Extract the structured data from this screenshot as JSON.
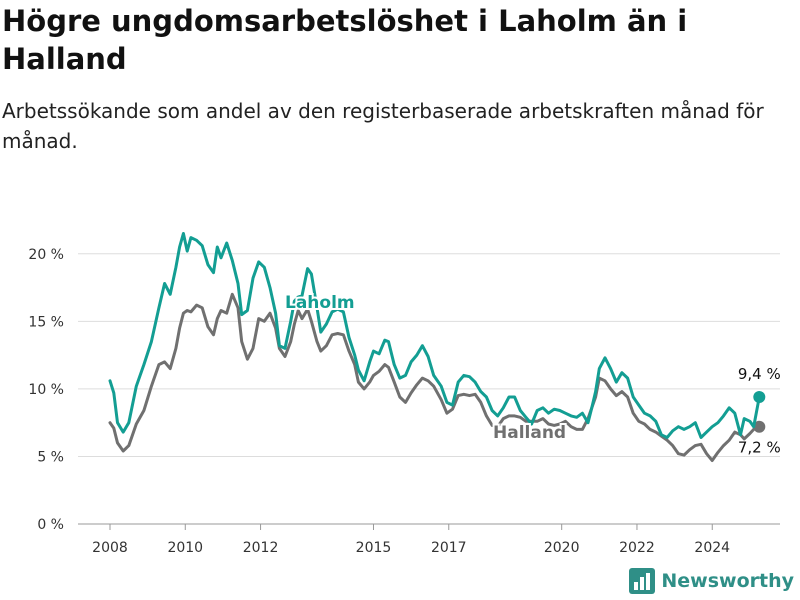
{
  "title": "Högre ungdomsarbetslöshet i Laholm än i Halland",
  "subtitle": "Arbetssökande som andel av den registerbaserade arbetskraften månad för månad.",
  "brand": "Newsworthy",
  "colors": {
    "laholm": "#139e93",
    "halland": "#707070",
    "grid": "#dddddd",
    "brand": "#2f8f87"
  },
  "chart_data": {
    "type": "line",
    "xlim": [
      2008,
      2025.8
    ],
    "ylim": [
      0,
      22.5
    ],
    "y_ticks": [
      0,
      5,
      10,
      15,
      20
    ],
    "y_tick_labels": [
      "0 %",
      "5 %",
      "10 %",
      "15 %",
      "20 %"
    ],
    "x_ticks": [
      2008,
      2010,
      2012,
      2015,
      2017,
      2020,
      2022,
      2024
    ],
    "x_tick_labels": [
      "2008",
      "2010",
      "2012",
      "2015",
      "2017",
      "2020",
      "2022",
      "2024"
    ],
    "grid": true,
    "series": [
      {
        "name": "Laholm",
        "end_label": "9,4 %",
        "points": [
          [
            2008.0,
            10.6
          ],
          [
            2008.1,
            9.7
          ],
          [
            2008.2,
            7.5
          ],
          [
            2008.35,
            6.8
          ],
          [
            2008.5,
            7.5
          ],
          [
            2008.7,
            10.2
          ],
          [
            2008.9,
            11.8
          ],
          [
            2009.1,
            13.5
          ],
          [
            2009.3,
            16.0
          ],
          [
            2009.45,
            17.8
          ],
          [
            2009.6,
            17.0
          ],
          [
            2009.75,
            19.0
          ],
          [
            2009.85,
            20.5
          ],
          [
            2009.95,
            21.5
          ],
          [
            2010.05,
            20.2
          ],
          [
            2010.15,
            21.2
          ],
          [
            2010.3,
            21.0
          ],
          [
            2010.45,
            20.6
          ],
          [
            2010.6,
            19.2
          ],
          [
            2010.75,
            18.6
          ],
          [
            2010.85,
            20.5
          ],
          [
            2010.95,
            19.7
          ],
          [
            2011.1,
            20.8
          ],
          [
            2011.25,
            19.5
          ],
          [
            2011.4,
            17.8
          ],
          [
            2011.5,
            15.5
          ],
          [
            2011.65,
            15.8
          ],
          [
            2011.8,
            18.2
          ],
          [
            2011.95,
            19.4
          ],
          [
            2012.1,
            19.0
          ],
          [
            2012.25,
            17.5
          ],
          [
            2012.4,
            15.6
          ],
          [
            2012.5,
            13.2
          ],
          [
            2012.65,
            13.0
          ],
          [
            2012.8,
            15.0
          ],
          [
            2012.9,
            16.5
          ],
          [
            2013.0,
            16.8
          ],
          [
            2013.1,
            16.9
          ],
          [
            2013.25,
            18.9
          ],
          [
            2013.35,
            18.5
          ],
          [
            2013.5,
            16.0
          ],
          [
            2013.6,
            14.2
          ],
          [
            2013.75,
            14.8
          ],
          [
            2013.9,
            15.7
          ],
          [
            2014.05,
            15.9
          ],
          [
            2014.2,
            15.7
          ],
          [
            2014.35,
            13.8
          ],
          [
            2014.5,
            12.5
          ],
          [
            2014.6,
            11.4
          ],
          [
            2014.75,
            10.6
          ],
          [
            2014.9,
            12.0
          ],
          [
            2015.0,
            12.8
          ],
          [
            2015.15,
            12.6
          ],
          [
            2015.3,
            13.6
          ],
          [
            2015.4,
            13.5
          ],
          [
            2015.55,
            11.8
          ],
          [
            2015.7,
            10.8
          ],
          [
            2015.85,
            11.0
          ],
          [
            2016.0,
            12.0
          ],
          [
            2016.15,
            12.5
          ],
          [
            2016.3,
            13.2
          ],
          [
            2016.45,
            12.4
          ],
          [
            2016.6,
            11.0
          ],
          [
            2016.8,
            10.2
          ],
          [
            2016.95,
            9.0
          ],
          [
            2017.1,
            8.8
          ],
          [
            2017.25,
            10.5
          ],
          [
            2017.4,
            11.0
          ],
          [
            2017.55,
            10.9
          ],
          [
            2017.7,
            10.5
          ],
          [
            2017.85,
            9.8
          ],
          [
            2018.0,
            9.4
          ],
          [
            2018.15,
            8.4
          ],
          [
            2018.3,
            8.0
          ],
          [
            2018.45,
            8.6
          ],
          [
            2018.6,
            9.4
          ],
          [
            2018.75,
            9.4
          ],
          [
            2018.9,
            8.4
          ],
          [
            2019.05,
            7.9
          ],
          [
            2019.2,
            7.4
          ],
          [
            2019.35,
            8.4
          ],
          [
            2019.5,
            8.6
          ],
          [
            2019.65,
            8.2
          ],
          [
            2019.8,
            8.5
          ],
          [
            2019.95,
            8.4
          ],
          [
            2020.1,
            8.2
          ],
          [
            2020.25,
            8.0
          ],
          [
            2020.4,
            7.9
          ],
          [
            2020.55,
            8.2
          ],
          [
            2020.7,
            7.5
          ],
          [
            2020.8,
            8.6
          ],
          [
            2020.9,
            9.8
          ],
          [
            2021.0,
            11.5
          ],
          [
            2021.15,
            12.3
          ],
          [
            2021.3,
            11.5
          ],
          [
            2021.45,
            10.5
          ],
          [
            2021.6,
            11.2
          ],
          [
            2021.75,
            10.8
          ],
          [
            2021.9,
            9.4
          ],
          [
            2022.05,
            8.8
          ],
          [
            2022.2,
            8.2
          ],
          [
            2022.35,
            8.0
          ],
          [
            2022.5,
            7.6
          ],
          [
            2022.65,
            6.6
          ],
          [
            2022.8,
            6.4
          ],
          [
            2022.95,
            6.9
          ],
          [
            2023.1,
            7.2
          ],
          [
            2023.25,
            7.0
          ],
          [
            2023.4,
            7.2
          ],
          [
            2023.55,
            7.5
          ],
          [
            2023.7,
            6.4
          ],
          [
            2023.85,
            6.8
          ],
          [
            2024.0,
            7.2
          ],
          [
            2024.15,
            7.5
          ],
          [
            2024.3,
            8.0
          ],
          [
            2024.45,
            8.6
          ],
          [
            2024.6,
            8.2
          ],
          [
            2024.75,
            6.6
          ],
          [
            2024.85,
            7.8
          ],
          [
            2025.0,
            7.6
          ],
          [
            2025.1,
            7.2
          ],
          [
            2025.25,
            9.4
          ]
        ]
      },
      {
        "name": "Halland",
        "end_label": "7,2 %",
        "points": [
          [
            2008.0,
            7.5
          ],
          [
            2008.1,
            7.1
          ],
          [
            2008.2,
            6.0
          ],
          [
            2008.35,
            5.4
          ],
          [
            2008.5,
            5.8
          ],
          [
            2008.7,
            7.4
          ],
          [
            2008.9,
            8.4
          ],
          [
            2009.1,
            10.2
          ],
          [
            2009.3,
            11.8
          ],
          [
            2009.45,
            12.0
          ],
          [
            2009.6,
            11.5
          ],
          [
            2009.75,
            13.0
          ],
          [
            2009.85,
            14.5
          ],
          [
            2009.95,
            15.6
          ],
          [
            2010.05,
            15.8
          ],
          [
            2010.15,
            15.7
          ],
          [
            2010.3,
            16.2
          ],
          [
            2010.45,
            16.0
          ],
          [
            2010.6,
            14.6
          ],
          [
            2010.75,
            14.0
          ],
          [
            2010.85,
            15.2
          ],
          [
            2010.95,
            15.8
          ],
          [
            2011.1,
            15.6
          ],
          [
            2011.25,
            17.0
          ],
          [
            2011.4,
            16.0
          ],
          [
            2011.5,
            13.5
          ],
          [
            2011.65,
            12.2
          ],
          [
            2011.8,
            13.0
          ],
          [
            2011.95,
            15.2
          ],
          [
            2012.1,
            15.0
          ],
          [
            2012.25,
            15.6
          ],
          [
            2012.4,
            14.5
          ],
          [
            2012.5,
            13.0
          ],
          [
            2012.65,
            12.4
          ],
          [
            2012.8,
            13.5
          ],
          [
            2012.9,
            14.8
          ],
          [
            2013.0,
            15.8
          ],
          [
            2013.1,
            15.2
          ],
          [
            2013.25,
            15.9
          ],
          [
            2013.35,
            15.0
          ],
          [
            2013.5,
            13.5
          ],
          [
            2013.6,
            12.8
          ],
          [
            2013.75,
            13.2
          ],
          [
            2013.9,
            14.0
          ],
          [
            2014.05,
            14.1
          ],
          [
            2014.2,
            14.0
          ],
          [
            2014.35,
            12.8
          ],
          [
            2014.5,
            11.8
          ],
          [
            2014.6,
            10.5
          ],
          [
            2014.75,
            10.0
          ],
          [
            2014.9,
            10.5
          ],
          [
            2015.0,
            11.0
          ],
          [
            2015.15,
            11.3
          ],
          [
            2015.3,
            11.8
          ],
          [
            2015.4,
            11.6
          ],
          [
            2015.55,
            10.5
          ],
          [
            2015.7,
            9.4
          ],
          [
            2015.85,
            9.0
          ],
          [
            2016.0,
            9.7
          ],
          [
            2016.15,
            10.3
          ],
          [
            2016.3,
            10.8
          ],
          [
            2016.45,
            10.6
          ],
          [
            2016.6,
            10.2
          ],
          [
            2016.8,
            9.2
          ],
          [
            2016.95,
            8.2
          ],
          [
            2017.1,
            8.5
          ],
          [
            2017.25,
            9.5
          ],
          [
            2017.4,
            9.6
          ],
          [
            2017.55,
            9.5
          ],
          [
            2017.7,
            9.6
          ],
          [
            2017.85,
            9.0
          ],
          [
            2018.0,
            8.0
          ],
          [
            2018.15,
            7.3
          ],
          [
            2018.3,
            7.2
          ],
          [
            2018.45,
            7.8
          ],
          [
            2018.6,
            8.0
          ],
          [
            2018.75,
            8.0
          ],
          [
            2018.9,
            7.9
          ],
          [
            2019.05,
            7.6
          ],
          [
            2019.2,
            7.6
          ],
          [
            2019.35,
            7.6
          ],
          [
            2019.5,
            7.8
          ],
          [
            2019.65,
            7.4
          ],
          [
            2019.8,
            7.3
          ],
          [
            2019.95,
            7.4
          ],
          [
            2020.1,
            7.6
          ],
          [
            2020.25,
            7.2
          ],
          [
            2020.4,
            7.0
          ],
          [
            2020.55,
            7.0
          ],
          [
            2020.7,
            7.8
          ],
          [
            2020.8,
            8.6
          ],
          [
            2020.9,
            9.4
          ],
          [
            2021.0,
            10.8
          ],
          [
            2021.15,
            10.6
          ],
          [
            2021.3,
            10.0
          ],
          [
            2021.45,
            9.5
          ],
          [
            2021.6,
            9.8
          ],
          [
            2021.75,
            9.4
          ],
          [
            2021.9,
            8.2
          ],
          [
            2022.05,
            7.6
          ],
          [
            2022.2,
            7.4
          ],
          [
            2022.35,
            7.0
          ],
          [
            2022.5,
            6.8
          ],
          [
            2022.65,
            6.5
          ],
          [
            2022.8,
            6.2
          ],
          [
            2022.95,
            5.8
          ],
          [
            2023.1,
            5.2
          ],
          [
            2023.25,
            5.1
          ],
          [
            2023.4,
            5.5
          ],
          [
            2023.55,
            5.8
          ],
          [
            2023.7,
            5.9
          ],
          [
            2023.85,
            5.2
          ],
          [
            2024.0,
            4.7
          ],
          [
            2024.15,
            5.3
          ],
          [
            2024.3,
            5.8
          ],
          [
            2024.45,
            6.2
          ],
          [
            2024.6,
            6.8
          ],
          [
            2024.75,
            6.6
          ],
          [
            2024.85,
            6.3
          ],
          [
            2025.0,
            6.7
          ],
          [
            2025.1,
            7.0
          ],
          [
            2025.25,
            7.2
          ]
        ]
      }
    ]
  }
}
